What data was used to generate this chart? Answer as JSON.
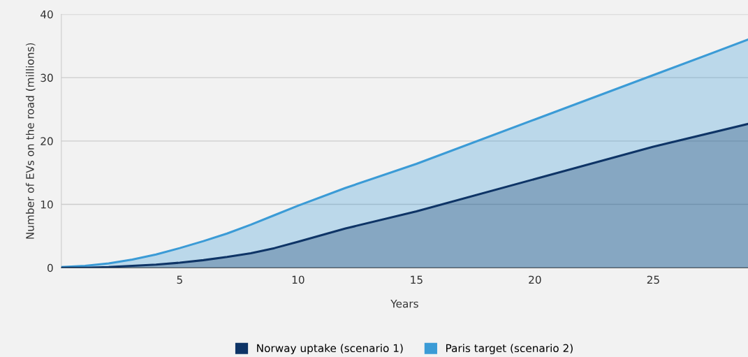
{
  "chart_data": {
    "type": "area",
    "xlabel": "Years",
    "ylabel": "Number of EVs on the road (millions)",
    "x": [
      0,
      1,
      2,
      3,
      4,
      5,
      6,
      7,
      8,
      9,
      10,
      12,
      15,
      20,
      25,
      29
    ],
    "series": [
      {
        "name": "Norway uptake (scenario 1)",
        "color": "#0e3466",
        "values": [
          0,
          0,
          0.1,
          0.3,
          0.5,
          0.8,
          1.2,
          1.7,
          2.3,
          3.1,
          4.1,
          6.2,
          8.9,
          14.0,
          19.1,
          22.7
        ]
      },
      {
        "name": "Paris target (scenario 2)",
        "color": "#3b9bd6",
        "values": [
          0.1,
          0.3,
          0.7,
          1.3,
          2.1,
          3.1,
          4.2,
          5.4,
          6.8,
          8.3,
          9.8,
          12.6,
          16.4,
          23.4,
          30.4,
          36.0
        ]
      }
    ],
    "xlim": [
      0,
      29
    ],
    "xticks": [
      5,
      10,
      15,
      20,
      25
    ],
    "ylim": [
      0,
      40
    ],
    "yticks": [
      0,
      10,
      20,
      30,
      40
    ],
    "grid": "y",
    "legend": "bottom"
  }
}
